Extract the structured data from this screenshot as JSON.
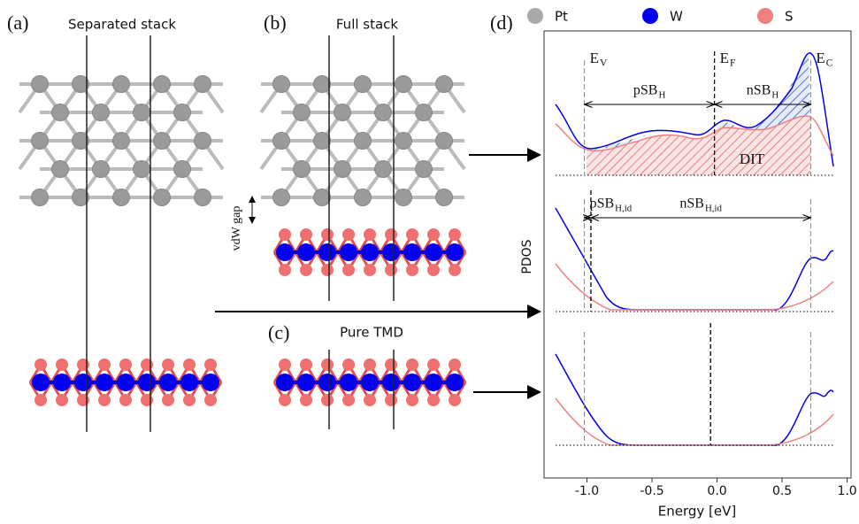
{
  "panels": {
    "a": {
      "label": "(a)",
      "title": "Separated stack"
    },
    "b": {
      "label": "(b)",
      "title": "Full stack",
      "gap": "vdW gap"
    },
    "c": {
      "label": "(c)",
      "title": "Pure TMD"
    },
    "d": {
      "label": "(d)"
    }
  },
  "chart_data": {
    "type": "line",
    "xlabel": "Energy [eV]",
    "ylabel": "PDOS",
    "xlim": [
      -1.33,
      1.03
    ],
    "xticks": [
      {
        "value": -1,
        "label": "-1.0"
      },
      {
        "value": -0.5,
        "label": "-0.5"
      },
      {
        "value": 0,
        "label": "0.0"
      },
      {
        "value": 0.5,
        "label": "0.5"
      },
      {
        "value": 1,
        "label": "1.0"
      }
    ],
    "legend": [
      {
        "name": "Pt",
        "color": "#aaaaaa"
      },
      {
        "name": "W",
        "color": "#0000ee"
      },
      {
        "name": "S",
        "color": "#f08080"
      }
    ],
    "subplots": [
      {
        "vlines": [
          {
            "x": -1.02,
            "style": "gray",
            "label": {
              "base": "E",
              "sub": "V"
            }
          },
          {
            "x": -0.02,
            "style": "black",
            "label": {
              "base": "E",
              "sub": "F"
            }
          },
          {
            "x": 0.72,
            "style": "gray",
            "label": {
              "base": "E",
              "sub": "C"
            }
          }
        ],
        "arrows": [
          {
            "from": -1.02,
            "to": -0.02,
            "label": {
              "base": "pSB",
              "sub": "H"
            }
          },
          {
            "from": -0.02,
            "to": 0.72,
            "label": {
              "base": "nSB",
              "sub": "H"
            }
          }
        ],
        "fill_label": "DIT"
      },
      {
        "vlines": [
          {
            "x": -1.02,
            "style": "gray"
          },
          {
            "x": -0.97,
            "style": "black"
          },
          {
            "x": 0.72,
            "style": "gray"
          }
        ],
        "arrows": [
          {
            "from": -1.02,
            "to": -0.97,
            "label": {
              "base": "pSB",
              "sub": "H,id"
            }
          },
          {
            "from": -0.97,
            "to": 0.72,
            "label": {
              "base": "nSB",
              "sub": "H,id"
            }
          }
        ]
      },
      {
        "vlines": [
          {
            "x": -1.02,
            "style": "gray"
          },
          {
            "x": -0.05,
            "style": "black"
          },
          {
            "x": 0.72,
            "style": "gray"
          }
        ]
      }
    ]
  }
}
